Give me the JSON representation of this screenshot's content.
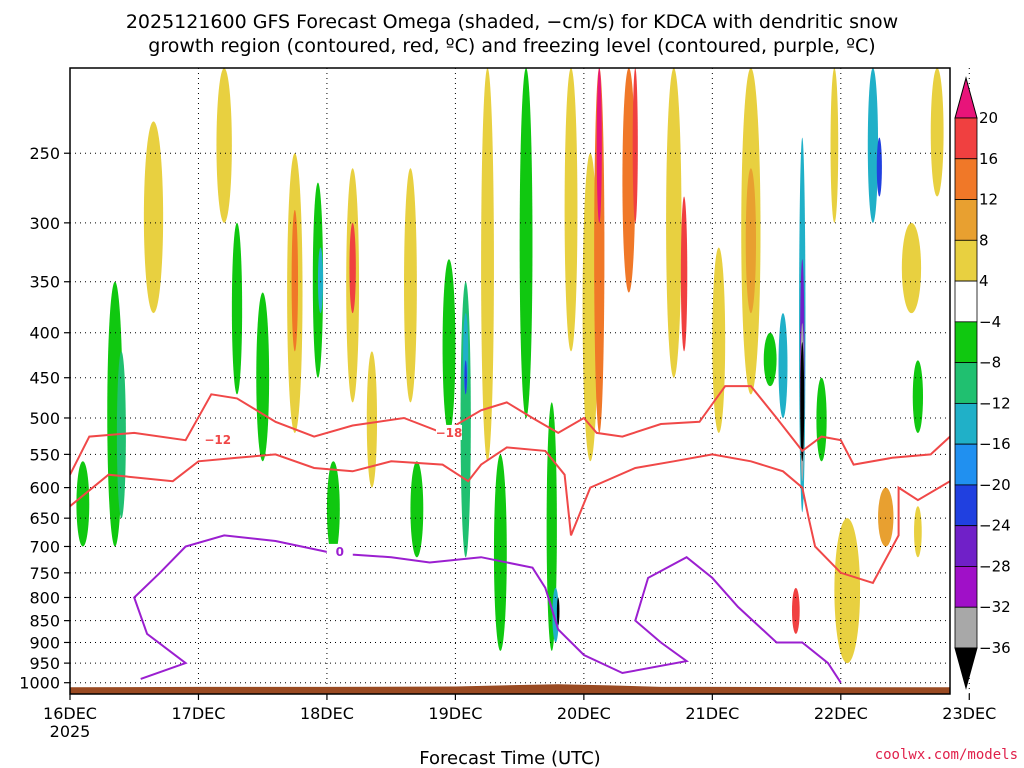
{
  "chart_data": {
    "type": "heatmap",
    "title_line1": "2025121600 GFS Forecast Omega (shaded, −cm/s) for KDCA with dendritic snow",
    "title_line2": "growth region (contoured, red, ºC) and freezing level (contoured, purple, ºC)",
    "xlabel": "Forecast Time (UTC)",
    "ylabel": "",
    "credit": "coolwx.com/models",
    "x_ticks": [
      "16DEC",
      "17DEC",
      "18DEC",
      "19DEC",
      "20DEC",
      "21DEC",
      "22DEC",
      "23DEC"
    ],
    "x_tick_year": "2025",
    "x_day_range": [
      0,
      6.85
    ],
    "y_ticks": [
      250,
      300,
      350,
      400,
      450,
      500,
      550,
      600,
      650,
      700,
      750,
      800,
      850,
      900,
      950,
      1000
    ],
    "y_range_hpa": [
      200,
      1030
    ],
    "colorbar": {
      "ticks": [
        "20",
        "16",
        "12",
        "8",
        "4",
        "−4",
        "−8",
        "−12",
        "−16",
        "−20",
        "−24",
        "−28",
        "−32",
        "−36"
      ],
      "bins": [
        {
          "range": ">20",
          "color": "#e8147a"
        },
        {
          "range": "16-20",
          "color": "#f04040"
        },
        {
          "range": "12-16",
          "color": "#f07828"
        },
        {
          "range": "8-12",
          "color": "#e8a030"
        },
        {
          "range": "4-8",
          "color": "#e8d040"
        },
        {
          "range": "-4-4",
          "color": "#ffffff"
        },
        {
          "range": "-8--4",
          "color": "#10c810"
        },
        {
          "range": "-12--8",
          "color": "#20c070"
        },
        {
          "range": "-16--12",
          "color": "#20b0c8"
        },
        {
          "range": "-20--16",
          "color": "#2090f0"
        },
        {
          "range": "-24--20",
          "color": "#2040e0"
        },
        {
          "range": "-28--24",
          "color": "#7020c8"
        },
        {
          "range": "-32--28",
          "color": "#a010c8"
        },
        {
          "range": "-36--32",
          "color": "#a8a8a8"
        },
        {
          "range": "<-36",
          "color": "#000000"
        }
      ]
    },
    "contour_colors": {
      "dgz": "#f04848",
      "freezing": "#9b1fd0",
      "ground": "#9a4a22"
    },
    "omega_features": [
      {
        "day": 0.1,
        "p0": 560,
        "p1": 700,
        "w": 0.1,
        "c": "#10c810"
      },
      {
        "day": 0.35,
        "p0": 350,
        "p1": 700,
        "w": 0.12,
        "c": "#10c810"
      },
      {
        "day": 0.4,
        "p0": 420,
        "p1": 650,
        "w": 0.07,
        "c": "#20c070"
      },
      {
        "day": 0.65,
        "p0": 230,
        "p1": 380,
        "w": 0.15,
        "c": "#e8d040"
      },
      {
        "day": 1.2,
        "p0": 200,
        "p1": 300,
        "w": 0.12,
        "c": "#e8d040"
      },
      {
        "day": 1.3,
        "p0": 300,
        "p1": 470,
        "w": 0.08,
        "c": "#10c810"
      },
      {
        "day": 1.5,
        "p0": 360,
        "p1": 560,
        "w": 0.1,
        "c": "#10c810"
      },
      {
        "day": 1.75,
        "p0": 250,
        "p1": 520,
        "w": 0.12,
        "c": "#e8d040"
      },
      {
        "day": 1.75,
        "p0": 290,
        "p1": 420,
        "w": 0.05,
        "c": "#f07828"
      },
      {
        "day": 1.93,
        "p0": 270,
        "p1": 450,
        "w": 0.08,
        "c": "#10c810"
      },
      {
        "day": 1.95,
        "p0": 320,
        "p1": 380,
        "w": 0.04,
        "c": "#20b0c8"
      },
      {
        "day": 2.05,
        "p0": 560,
        "p1": 720,
        "w": 0.1,
        "c": "#10c810"
      },
      {
        "day": 2.2,
        "p0": 260,
        "p1": 480,
        "w": 0.1,
        "c": "#e8d040"
      },
      {
        "day": 2.2,
        "p0": 300,
        "p1": 380,
        "w": 0.05,
        "c": "#f04040"
      },
      {
        "day": 2.35,
        "p0": 420,
        "p1": 600,
        "w": 0.08,
        "c": "#e8d040"
      },
      {
        "day": 2.65,
        "p0": 260,
        "p1": 480,
        "w": 0.1,
        "c": "#e8d040"
      },
      {
        "day": 2.7,
        "p0": 560,
        "p1": 720,
        "w": 0.1,
        "c": "#10c810"
      },
      {
        "day": 2.95,
        "p0": 330,
        "p1": 520,
        "w": 0.1,
        "c": "#10c810"
      },
      {
        "day": 3.08,
        "p0": 350,
        "p1": 720,
        "w": 0.08,
        "c": "#20c070"
      },
      {
        "day": 3.08,
        "p0": 380,
        "p1": 470,
        "w": 0.04,
        "c": "#20b0c8"
      },
      {
        "day": 3.08,
        "p0": 430,
        "p1": 470,
        "w": 0.02,
        "c": "#2040e0"
      },
      {
        "day": 3.25,
        "p0": 200,
        "p1": 560,
        "w": 0.1,
        "c": "#e8d040"
      },
      {
        "day": 3.35,
        "p0": 550,
        "p1": 920,
        "w": 0.1,
        "c": "#10c810"
      },
      {
        "day": 3.55,
        "p0": 200,
        "p1": 500,
        "w": 0.1,
        "c": "#10c810"
      },
      {
        "day": 3.75,
        "p0": 480,
        "p1": 920,
        "w": 0.08,
        "c": "#10c810"
      },
      {
        "day": 3.78,
        "p0": 780,
        "p1": 900,
        "w": 0.05,
        "c": "#20b0c8"
      },
      {
        "day": 3.8,
        "p0": 800,
        "p1": 860,
        "w": 0.02,
        "c": "#000000"
      },
      {
        "day": 3.9,
        "p0": 200,
        "p1": 420,
        "w": 0.1,
        "c": "#e8d040"
      },
      {
        "day": 4.05,
        "p0": 250,
        "p1": 560,
        "w": 0.12,
        "c": "#e8d040"
      },
      {
        "day": 4.12,
        "p0": 200,
        "p1": 520,
        "w": 0.08,
        "c": "#f07828"
      },
      {
        "day": 4.12,
        "p0": 200,
        "p1": 300,
        "w": 0.04,
        "c": "#e8147a"
      },
      {
        "day": 4.35,
        "p0": 200,
        "p1": 360,
        "w": 0.1,
        "c": "#f07828"
      },
      {
        "day": 4.4,
        "p0": 200,
        "p1": 300,
        "w": 0.04,
        "c": "#f04040"
      },
      {
        "day": 4.7,
        "p0": 200,
        "p1": 450,
        "w": 0.12,
        "c": "#e8d040"
      },
      {
        "day": 4.78,
        "p0": 280,
        "p1": 420,
        "w": 0.05,
        "c": "#f04040"
      },
      {
        "day": 5.05,
        "p0": 320,
        "p1": 520,
        "w": 0.1,
        "c": "#e8d040"
      },
      {
        "day": 5.3,
        "p0": 200,
        "p1": 470,
        "w": 0.15,
        "c": "#e8d040"
      },
      {
        "day": 5.3,
        "p0": 260,
        "p1": 380,
        "w": 0.08,
        "c": "#e8a030"
      },
      {
        "day": 5.45,
        "p0": 400,
        "p1": 460,
        "w": 0.1,
        "c": "#10c810"
      },
      {
        "day": 5.55,
        "p0": 380,
        "p1": 500,
        "w": 0.07,
        "c": "#20b0c8"
      },
      {
        "day": 5.7,
        "p0": 240,
        "p1": 640,
        "w": 0.05,
        "c": "#20b0c8"
      },
      {
        "day": 5.7,
        "p0": 330,
        "p1": 560,
        "w": 0.035,
        "c": "#7020c8"
      },
      {
        "day": 5.7,
        "p0": 390,
        "p1": 590,
        "w": 0.03,
        "c": "#a8a8a8"
      },
      {
        "day": 5.7,
        "p0": 410,
        "p1": 560,
        "w": 0.03,
        "c": "#000000"
      },
      {
        "day": 5.65,
        "p0": 780,
        "p1": 880,
        "w": 0.06,
        "c": "#f04040"
      },
      {
        "day": 5.85,
        "p0": 450,
        "p1": 560,
        "w": 0.08,
        "c": "#10c810"
      },
      {
        "day": 5.95,
        "p0": 200,
        "p1": 300,
        "w": 0.06,
        "c": "#e8d040"
      },
      {
        "day": 6.25,
        "p0": 200,
        "p1": 300,
        "w": 0.08,
        "c": "#20b0c8"
      },
      {
        "day": 6.3,
        "p0": 240,
        "p1": 280,
        "w": 0.04,
        "c": "#2040e0"
      },
      {
        "day": 6.35,
        "p0": 600,
        "p1": 700,
        "w": 0.12,
        "c": "#e8a030"
      },
      {
        "day": 6.05,
        "p0": 650,
        "p1": 950,
        "w": 0.2,
        "c": "#e8d040"
      },
      {
        "day": 6.6,
        "p0": 430,
        "p1": 520,
        "w": 0.08,
        "c": "#10c810"
      },
      {
        "day": 6.75,
        "p0": 200,
        "p1": 280,
        "w": 0.1,
        "c": "#e8d040"
      },
      {
        "day": 6.55,
        "p0": 300,
        "p1": 380,
        "w": 0.15,
        "c": "#e8d040"
      },
      {
        "day": 6.6,
        "p0": 630,
        "p1": 720,
        "w": 0.06,
        "c": "#e8d040"
      }
    ],
    "contours": [
      {
        "name": "dgz_minus12",
        "label": "−12",
        "color_key": "dgz",
        "points": [
          [
            0.0,
            580
          ],
          [
            0.15,
            525
          ],
          [
            0.5,
            520
          ],
          [
            0.9,
            530
          ],
          [
            1.1,
            470
          ],
          [
            1.3,
            475
          ],
          [
            1.6,
            505
          ],
          [
            1.9,
            525
          ],
          [
            2.2,
            510
          ],
          [
            2.6,
            500
          ],
          [
            2.9,
            520
          ],
          [
            3.2,
            490
          ],
          [
            3.4,
            480
          ],
          [
            3.6,
            500
          ],
          [
            3.8,
            520
          ],
          [
            4.0,
            500
          ],
          [
            4.1,
            520
          ],
          [
            4.3,
            525
          ],
          [
            4.6,
            508
          ],
          [
            4.9,
            505
          ],
          [
            5.1,
            460
          ],
          [
            5.3,
            460
          ],
          [
            5.5,
            500
          ],
          [
            5.7,
            545
          ],
          [
            5.85,
            525
          ],
          [
            6.0,
            530
          ],
          [
            6.1,
            565
          ],
          [
            6.4,
            555
          ],
          [
            6.7,
            550
          ],
          [
            6.85,
            525
          ]
        ],
        "label_at": [
          1.15,
          530
        ]
      },
      {
        "name": "dgz_minus18",
        "label": "−18",
        "color_key": "dgz",
        "points": [
          [
            0.0,
            630
          ],
          [
            0.3,
            580
          ],
          [
            0.8,
            590
          ],
          [
            1.0,
            560
          ],
          [
            1.3,
            555
          ],
          [
            1.6,
            550
          ],
          [
            1.9,
            570
          ],
          [
            2.2,
            575
          ],
          [
            2.5,
            560
          ],
          [
            2.9,
            565
          ],
          [
            3.1,
            590
          ],
          [
            3.2,
            565
          ],
          [
            3.4,
            540
          ],
          [
            3.7,
            545
          ],
          [
            3.85,
            580
          ],
          [
            3.9,
            680
          ],
          [
            4.05,
            600
          ],
          [
            4.4,
            570
          ],
          [
            4.7,
            560
          ],
          [
            5.0,
            550
          ],
          [
            5.3,
            560
          ],
          [
            5.55,
            575
          ],
          [
            5.7,
            600
          ],
          [
            5.75,
            650
          ],
          [
            5.8,
            700
          ],
          [
            6.0,
            750
          ],
          [
            6.25,
            770
          ],
          [
            6.45,
            680
          ],
          [
            6.45,
            600
          ],
          [
            6.6,
            620
          ],
          [
            6.85,
            590
          ]
        ],
        "label_at": [
          2.95,
          520
        ]
      },
      {
        "name": "freezing_0",
        "label": "0",
        "color_key": "freezing",
        "points": [
          [
            0.55,
            990
          ],
          [
            0.9,
            950
          ],
          [
            0.6,
            880
          ],
          [
            0.5,
            800
          ],
          [
            0.7,
            750
          ],
          [
            0.9,
            700
          ],
          [
            1.2,
            680
          ],
          [
            1.6,
            690
          ],
          [
            2.0,
            710
          ],
          [
            2.2,
            715
          ],
          [
            2.5,
            720
          ],
          [
            2.8,
            730
          ],
          [
            3.2,
            720
          ],
          [
            3.6,
            740
          ],
          [
            3.7,
            780
          ],
          [
            3.8,
            870
          ],
          [
            4.0,
            930
          ],
          [
            4.3,
            975
          ],
          [
            4.8,
            945
          ],
          [
            4.6,
            900
          ],
          [
            4.4,
            850
          ],
          [
            4.5,
            760
          ],
          [
            4.8,
            720
          ],
          [
            5.0,
            760
          ],
          [
            5.2,
            820
          ],
          [
            5.5,
            900
          ],
          [
            5.7,
            900
          ],
          [
            5.9,
            950
          ],
          [
            6.0,
            1000
          ]
        ],
        "label_at": [
          2.1,
          710
        ]
      }
    ]
  }
}
